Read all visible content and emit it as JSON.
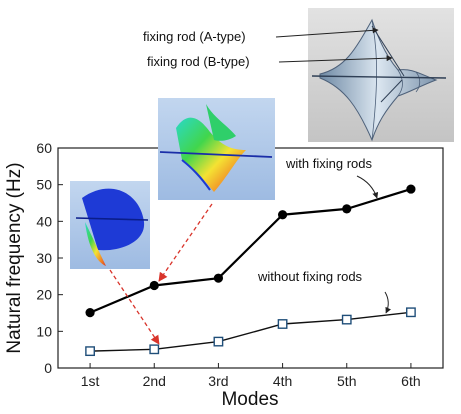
{
  "chart_data": {
    "type": "line",
    "categories": [
      "1st",
      "2nd",
      "3rd",
      "4th",
      "5th",
      "6th"
    ],
    "xlabel": "Modes",
    "ylabel": "Natural frequency (Hz)",
    "ylim": [
      0,
      60
    ],
    "yticks": [
      0,
      10,
      20,
      30,
      40,
      50,
      60
    ],
    "grid": false,
    "series": [
      {
        "name": "with fixing rods",
        "values": [
          15.1,
          22.5,
          24.5,
          41.8,
          43.4,
          48.8
        ],
        "marker": "filled-circle",
        "color": "#000000"
      },
      {
        "name": "without fixing rods",
        "values": [
          4.6,
          5.1,
          7.2,
          12.0,
          13.2,
          15.2
        ],
        "marker": "open-square",
        "color": "#1f4e79"
      }
    ],
    "annotations": {
      "rod_a": "fixing rod (A-type)",
      "rod_b": "fixing rod (B-type)"
    },
    "colors": {
      "arrow": "#d9342b",
      "mode_shape_bg": "#a9c4e6",
      "model_bg": "#d3d3d3"
    }
  }
}
